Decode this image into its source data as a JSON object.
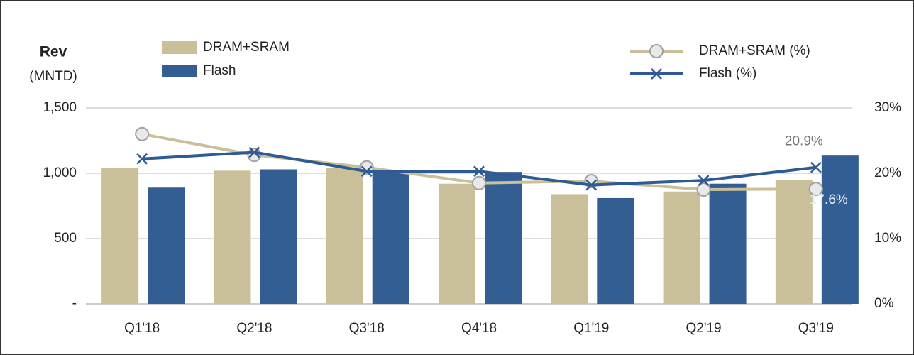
{
  "chart_data": {
    "type": "bar",
    "y_label": "Rev",
    "y_label_unit": "(MNTD)",
    "categories": [
      "Q1'18",
      "Q2'18",
      "Q3'18",
      "Q4'18",
      "Q1'19",
      "Q2'19",
      "Q3'19"
    ],
    "series": [
      {
        "name": "DRAM+SRAM",
        "color": "#c9bf98",
        "values": [
          1040,
          1020,
          1040,
          920,
          840,
          860,
          950
        ]
      },
      {
        "name": "Flash",
        "color": "#335e93",
        "values": [
          890,
          1030,
          1020,
          1010,
          810,
          920,
          1135
        ]
      },
      {
        "name": "DRAM+SRAM (%)",
        "type": "line",
        "axis": "y2",
        "color": "#c9bf98",
        "marker": "circle",
        "values": [
          26.0,
          22.8,
          20.9,
          18.5,
          18.8,
          17.5,
          17.6
        ],
        "value_labels": [
          null,
          null,
          null,
          null,
          null,
          null,
          "17.6%"
        ]
      },
      {
        "name": "Flash (%)",
        "type": "line",
        "axis": "y2",
        "color": "#2e5b93",
        "marker": "x",
        "values": [
          22.2,
          23.2,
          20.3,
          20.3,
          18.2,
          18.9,
          20.9
        ],
        "value_labels": [
          null,
          null,
          null,
          null,
          null,
          null,
          "20.9%"
        ]
      }
    ],
    "ylim": [
      0,
      1500
    ],
    "yticks": [
      {
        "value": 0,
        "label": "-"
      },
      500,
      {
        "value": 1000,
        "label": "1,000"
      },
      {
        "value": 1500,
        "label": "1,500"
      }
    ],
    "y2lim": [
      0,
      30
    ],
    "y2ticks": [
      {
        "value": 0,
        "label": "0%"
      },
      {
        "value": 10,
        "label": "10%"
      },
      {
        "value": 20,
        "label": "20%"
      },
      {
        "value": 30,
        "label": "30%"
      }
    ],
    "grid": true
  }
}
